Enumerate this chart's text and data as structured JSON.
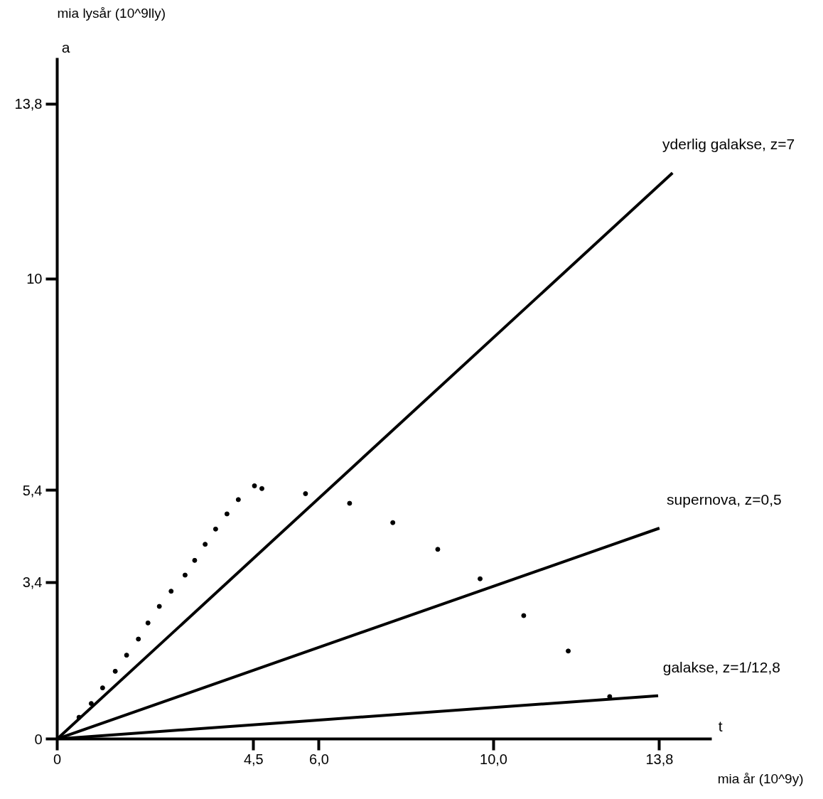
{
  "chart_data": {
    "type": "line",
    "xlabel": "t",
    "ylabel": "a",
    "annotations": [
      "mia lysår (10^9lly)",
      "mia år (10^9y)"
    ],
    "xlim": [
      0,
      15
    ],
    "ylim": [
      0,
      14.8
    ],
    "xticks": [
      0,
      {
        "value": 4.5,
        "label": "4,5"
      },
      {
        "value": 6.0,
        "label": "6,0"
      },
      {
        "value": 10,
        "label": "10,0"
      },
      {
        "value": 13.8,
        "label": "13,8"
      }
    ],
    "yticks": [
      0,
      {
        "value": 3.4,
        "label": "3,4"
      },
      {
        "value": 5.4,
        "label": "5,4"
      },
      10,
      {
        "value": 13.8,
        "label": "13,8"
      }
    ],
    "grid": false,
    "series": [
      {
        "name": "yderlig galakse, z=7",
        "color": "#000000",
        "x": [
          0,
          14.1
        ],
        "values": [
          0,
          12.3
        ]
      },
      {
        "name": "supernova, z=0,5",
        "color": "#000000",
        "x": [
          0,
          13.8
        ],
        "values": [
          0,
          4.58
        ]
      },
      {
        "name": "galakse, z=1/12,8",
        "color": "#000000",
        "x": [
          0,
          13.77
        ],
        "values": [
          0,
          0.94
        ]
      },
      {
        "type": "scatter",
        "marker": "circle",
        "color": "#000000",
        "x": [
          0.5,
          0.78,
          1.04,
          1.33,
          1.59,
          1.86,
          2.08,
          2.34,
          2.61,
          2.93,
          3.15,
          3.39,
          3.63,
          3.89,
          4.15,
          4.52,
          4.69,
          5.69,
          6.7,
          7.69,
          8.72,
          9.69,
          10.69,
          11.71,
          12.66
        ],
        "values": [
          0.47,
          0.77,
          1.11,
          1.47,
          1.82,
          2.17,
          2.52,
          2.88,
          3.21,
          3.56,
          3.88,
          4.23,
          4.56,
          4.89,
          5.2,
          5.5,
          5.44,
          5.33,
          5.12,
          4.7,
          4.12,
          3.48,
          2.68,
          1.91,
          0.92
        ]
      }
    ]
  }
}
